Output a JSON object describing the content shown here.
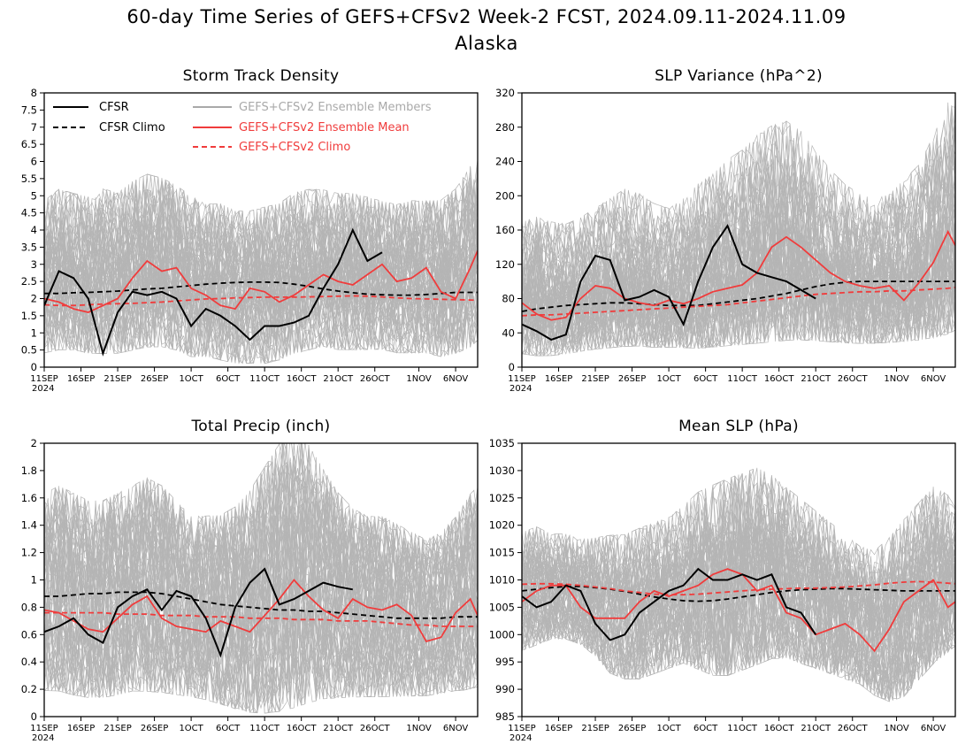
{
  "figure": {
    "title": "60-day Time Series of GEFS+CFSv2 Week-2 FCST, 2024.09.11-2024.11.09",
    "subtitle": "Alaska"
  },
  "colors": {
    "cfsr": "#000000",
    "members": "#a9a9a9",
    "ens_mean": "#f03c3c",
    "gefs_climo": "#f03c3c"
  },
  "legend": {
    "cfsr": "CFSR",
    "cfsr_climo": "CFSR Climo",
    "members": "GEFS+CFSv2 Ensemble Members",
    "ens_mean": "GEFS+CFSv2 Ensemble Mean",
    "gefs_climo": "GEFS+CFSv2 Climo"
  },
  "chart_data": [
    {
      "type": "line",
      "title": "Storm Track Density",
      "x": [
        "09-11",
        "09-13",
        "09-15",
        "09-17",
        "09-19",
        "09-21",
        "09-23",
        "09-25",
        "09-27",
        "09-29",
        "10-01",
        "10-03",
        "10-05",
        "10-07",
        "10-09",
        "10-11",
        "10-13",
        "10-15",
        "10-17",
        "10-19",
        "10-21",
        "10-23",
        "10-25",
        "10-27",
        "10-29",
        "10-31",
        "11-02",
        "11-04",
        "11-06",
        "11-08",
        "11-09"
      ],
      "xticks": [
        "11SEP",
        "16SEP",
        "21SEP",
        "26SEP",
        "1OCT",
        "6OCT",
        "11OCT",
        "16OCT",
        "21OCT",
        "26OCT",
        "1NOV",
        "6NOV"
      ],
      "xyear": "2024",
      "ylim": [
        0,
        8
      ],
      "yticks": [
        "0",
        "0.5",
        "1",
        "1.5",
        "2",
        "2.5",
        "3",
        "3.5",
        "4",
        "4.5",
        "5",
        "5.5",
        "6",
        "6.5",
        "7",
        "7.5",
        "8"
      ],
      "members_band": {
        "upper": [
          4.3,
          4.6,
          4.5,
          4.4,
          4.6,
          4.5,
          4.8,
          5.0,
          4.9,
          4.7,
          4.4,
          4.2,
          4.2,
          4.0,
          4.0,
          4.1,
          4.2,
          4.5,
          4.6,
          4.6,
          4.5,
          4.5,
          4.4,
          4.3,
          4.2,
          4.3,
          4.3,
          4.3,
          4.6,
          5.2,
          5.4
        ],
        "lower": [
          0.6,
          0.7,
          0.7,
          0.6,
          0.6,
          0.6,
          0.7,
          0.8,
          0.8,
          0.7,
          0.5,
          0.5,
          0.4,
          0.3,
          0.3,
          0.3,
          0.4,
          0.6,
          0.7,
          0.8,
          0.7,
          0.7,
          0.7,
          0.7,
          0.6,
          0.6,
          0.6,
          0.5,
          0.6,
          0.8,
          1.0
        ]
      },
      "series": [
        {
          "name": "CFSR",
          "key": "cfsr",
          "values": [
            1.8,
            2.8,
            2.6,
            2.0,
            0.4,
            1.6,
            2.2,
            2.1,
            2.2,
            2.0,
            1.2,
            1.7,
            1.5,
            1.2,
            0.8,
            1.2,
            1.2,
            1.3,
            1.5,
            2.3,
            3.0,
            4.0,
            3.1,
            3.35,
            null,
            null,
            null,
            null,
            null,
            null,
            null
          ]
        },
        {
          "name": "CFSR Climo",
          "key": "cfsr_climo",
          "values": [
            2.15,
            2.15,
            2.17,
            2.18,
            2.2,
            2.22,
            2.25,
            2.28,
            2.3,
            2.34,
            2.38,
            2.42,
            2.45,
            2.47,
            2.48,
            2.48,
            2.47,
            2.42,
            2.36,
            2.28,
            2.22,
            2.17,
            2.13,
            2.11,
            2.1,
            2.1,
            2.12,
            2.15,
            2.18,
            2.18,
            2.18
          ]
        },
        {
          "name": "GEFS+CFSv2 Ensemble Mean",
          "key": "ens_mean",
          "values": [
            2.0,
            1.9,
            1.7,
            1.6,
            1.8,
            2.0,
            2.6,
            3.1,
            2.8,
            2.9,
            2.3,
            2.1,
            1.8,
            1.7,
            2.3,
            2.2,
            1.9,
            2.1,
            2.4,
            2.7,
            2.5,
            2.4,
            2.7,
            3.0,
            2.5,
            2.6,
            2.9,
            2.2,
            2.0,
            2.9,
            3.4
          ]
        },
        {
          "name": "GEFS+CFSv2 Climo",
          "key": "gefs_climo",
          "values": [
            1.82,
            1.8,
            1.8,
            1.82,
            1.84,
            1.85,
            1.86,
            1.88,
            1.9,
            1.93,
            1.96,
            1.99,
            2.0,
            2.02,
            2.03,
            2.04,
            2.04,
            2.04,
            2.05,
            2.06,
            2.07,
            2.08,
            2.07,
            2.05,
            2.02,
            2.0,
            1.99,
            1.98,
            1.97,
            1.96,
            1.95
          ]
        }
      ]
    },
    {
      "type": "line",
      "title": "SLP Variance (hPa^2)",
      "x": [
        "09-11",
        "09-13",
        "09-15",
        "09-17",
        "09-19",
        "09-21",
        "09-23",
        "09-25",
        "09-27",
        "09-29",
        "10-01",
        "10-03",
        "10-05",
        "10-07",
        "10-09",
        "10-11",
        "10-13",
        "10-15",
        "10-17",
        "10-19",
        "10-21",
        "10-23",
        "10-25",
        "10-27",
        "10-29",
        "10-31",
        "11-02",
        "11-04",
        "11-06",
        "11-08",
        "11-09"
      ],
      "xticks": [
        "11SEP",
        "16SEP",
        "21SEP",
        "26SEP",
        "1OCT",
        "6OCT",
        "11OCT",
        "16OCT",
        "21OCT",
        "26OCT",
        "1NOV",
        "6NOV"
      ],
      "xyear": "2024",
      "ylim": [
        0,
        320
      ],
      "yticks": [
        "0",
        "40",
        "80",
        "120",
        "160",
        "200",
        "240",
        "280",
        "320"
      ],
      "members_band": {
        "upper": [
          150,
          155,
          150,
          148,
          155,
          165,
          175,
          185,
          180,
          170,
          165,
          175,
          190,
          200,
          215,
          225,
          240,
          250,
          255,
          245,
          225,
          205,
          190,
          180,
          175,
          180,
          195,
          210,
          240,
          275,
          290
        ],
        "lower": [
          22,
          20,
          20,
          22,
          25,
          28,
          30,
          32,
          32,
          30,
          30,
          30,
          30,
          32,
          34,
          36,
          38,
          40,
          42,
          42,
          40,
          38,
          36,
          35,
          35,
          36,
          38,
          40,
          44,
          50,
          55
        ]
      },
      "series": [
        {
          "name": "CFSR",
          "key": "cfsr",
          "values": [
            50,
            42,
            32,
            38,
            100,
            130,
            125,
            78,
            82,
            90,
            82,
            50,
            100,
            140,
            165,
            120,
            110,
            105,
            100,
            90,
            80,
            null,
            null,
            null,
            null,
            null,
            null,
            null,
            null,
            null,
            null
          ]
        },
        {
          "name": "CFSR Climo",
          "key": "cfsr_climo",
          "values": [
            65,
            68,
            70,
            72,
            73,
            74,
            75,
            75,
            74,
            73,
            72,
            72,
            72,
            74,
            76,
            78,
            80,
            83,
            86,
            90,
            94,
            97,
            99,
            100,
            100,
            100,
            100,
            100,
            100,
            100,
            100
          ]
        },
        {
          "name": "GEFS+CFSv2 Ensemble Mean",
          "key": "ens_mean",
          "values": [
            75,
            62,
            55,
            58,
            80,
            95,
            92,
            80,
            75,
            72,
            78,
            74,
            80,
            88,
            92,
            96,
            110,
            140,
            152,
            140,
            125,
            110,
            100,
            95,
            92,
            95,
            78,
            98,
            122,
            158,
            142
          ]
        },
        {
          "name": "GEFS+CFSv2 Climo",
          "key": "gefs_climo",
          "values": [
            60,
            61,
            61,
            62,
            63,
            64,
            65,
            66,
            67,
            68,
            69,
            70,
            71,
            72,
            73,
            75,
            77,
            79,
            81,
            83,
            85,
            86,
            87,
            88,
            88,
            89,
            89,
            90,
            91,
            92,
            93
          ]
        }
      ]
    },
    {
      "type": "line",
      "title": "Total Precip (inch)",
      "x": [
        "09-11",
        "09-13",
        "09-15",
        "09-17",
        "09-19",
        "09-21",
        "09-23",
        "09-25",
        "09-27",
        "09-29",
        "10-01",
        "10-03",
        "10-05",
        "10-07",
        "10-09",
        "10-11",
        "10-13",
        "10-15",
        "10-17",
        "10-19",
        "10-21",
        "10-23",
        "10-25",
        "10-27",
        "10-29",
        "10-31",
        "11-02",
        "11-04",
        "11-06",
        "11-08",
        "11-09"
      ],
      "xticks": [
        "11SEP",
        "16SEP",
        "21SEP",
        "26SEP",
        "1OCT",
        "6OCT",
        "11OCT",
        "16OCT",
        "21OCT",
        "26OCT",
        "1NOV",
        "6NOV"
      ],
      "xyear": "2024",
      "ylim": [
        0,
        2
      ],
      "yticks": [
        "0",
        "0.2",
        "0.4",
        "0.6",
        "0.8",
        "1",
        "1.2",
        "1.4",
        "1.6",
        "1.8",
        "2"
      ],
      "members_band": {
        "upper": [
          1.45,
          1.5,
          1.45,
          1.4,
          1.4,
          1.45,
          1.5,
          1.55,
          1.5,
          1.4,
          1.3,
          1.3,
          1.3,
          1.35,
          1.45,
          1.6,
          1.75,
          1.85,
          1.75,
          1.6,
          1.45,
          1.35,
          1.3,
          1.3,
          1.25,
          1.2,
          1.15,
          1.2,
          1.3,
          1.45,
          1.5
        ],
        "lower": [
          0.25,
          0.25,
          0.22,
          0.2,
          0.2,
          0.22,
          0.25,
          0.25,
          0.24,
          0.22,
          0.2,
          0.18,
          0.15,
          0.12,
          0.1,
          0.1,
          0.12,
          0.15,
          0.18,
          0.2,
          0.2,
          0.2,
          0.2,
          0.2,
          0.2,
          0.2,
          0.2,
          0.22,
          0.24,
          0.26,
          0.28
        ]
      },
      "series": [
        {
          "name": "CFSR",
          "key": "cfsr",
          "values": [
            0.62,
            0.66,
            0.72,
            0.6,
            0.54,
            0.8,
            0.88,
            0.93,
            0.78,
            0.92,
            0.88,
            0.72,
            0.45,
            0.8,
            0.98,
            1.08,
            0.82,
            0.86,
            0.92,
            0.98,
            0.95,
            0.93,
            null,
            null,
            null,
            null,
            null,
            null,
            null,
            null,
            null
          ]
        },
        {
          "name": "CFSR Climo",
          "key": "cfsr_climo",
          "values": [
            0.88,
            0.88,
            0.89,
            0.9,
            0.9,
            0.91,
            0.91,
            0.91,
            0.9,
            0.88,
            0.86,
            0.84,
            0.82,
            0.81,
            0.8,
            0.79,
            0.78,
            0.78,
            0.77,
            0.77,
            0.76,
            0.75,
            0.74,
            0.73,
            0.72,
            0.72,
            0.72,
            0.72,
            0.73,
            0.73,
            0.73
          ]
        },
        {
          "name": "GEFS+CFSv2 Ensemble Mean",
          "key": "ens_mean",
          "values": [
            0.78,
            0.76,
            0.7,
            0.64,
            0.62,
            0.72,
            0.82,
            0.88,
            0.72,
            0.66,
            0.64,
            0.62,
            0.7,
            0.66,
            0.62,
            0.74,
            0.86,
            1.0,
            0.88,
            0.78,
            0.72,
            0.86,
            0.8,
            0.78,
            0.82,
            0.74,
            0.55,
            0.58,
            0.76,
            0.86,
            0.74
          ]
        },
        {
          "name": "GEFS+CFSv2 Climo",
          "key": "gefs_climo",
          "values": [
            0.76,
            0.76,
            0.76,
            0.76,
            0.76,
            0.75,
            0.75,
            0.75,
            0.74,
            0.74,
            0.74,
            0.73,
            0.73,
            0.73,
            0.72,
            0.72,
            0.72,
            0.71,
            0.71,
            0.71,
            0.7,
            0.7,
            0.7,
            0.69,
            0.68,
            0.67,
            0.67,
            0.66,
            0.66,
            0.66,
            0.66
          ]
        }
      ]
    },
    {
      "type": "line",
      "title": "Mean SLP (hPa)",
      "x": [
        "09-11",
        "09-13",
        "09-15",
        "09-17",
        "09-19",
        "09-21",
        "09-23",
        "09-25",
        "09-27",
        "09-29",
        "10-01",
        "10-03",
        "10-05",
        "10-07",
        "10-09",
        "10-11",
        "10-13",
        "10-15",
        "10-17",
        "10-19",
        "10-21",
        "10-23",
        "10-25",
        "10-27",
        "10-29",
        "10-31",
        "11-02",
        "11-04",
        "11-06",
        "11-08",
        "11-09"
      ],
      "xticks": [
        "11SEP",
        "16SEP",
        "21SEP",
        "26SEP",
        "1OCT",
        "6OCT",
        "11OCT",
        "16OCT",
        "21OCT",
        "26OCT",
        "1NOV",
        "6NOV"
      ],
      "xyear": "2024",
      "ylim": [
        985,
        1035
      ],
      "yticks": [
        "985",
        "990",
        "995",
        "1000",
        "1005",
        "1010",
        "1015",
        "1020",
        "1025",
        "1030",
        "1035"
      ],
      "members_band": {
        "upper": [
          1016,
          1017,
          1016,
          1016,
          1015,
          1015,
          1015,
          1015,
          1016,
          1017,
          1018,
          1020,
          1022,
          1023,
          1024,
          1025,
          1026,
          1025,
          1023,
          1021,
          1019,
          1017,
          1015,
          1013,
          1012,
          1014,
          1017,
          1020,
          1023,
          1022,
          1020
        ],
        "lower": [
          998,
          999,
          1000,
          1000,
          999,
          997,
          994,
          993,
          993,
          994,
          995,
          996,
          995,
          994,
          994,
          995,
          996,
          997,
          997,
          996,
          995,
          994,
          993,
          992,
          990,
          989,
          990,
          993,
          996,
          998,
          999
        ]
      },
      "series": [
        {
          "name": "CFSR",
          "key": "cfsr",
          "values": [
            1007,
            1005,
            1006,
            1009,
            1008,
            1002,
            999,
            1000,
            1004,
            1006,
            1008,
            1009,
            1012,
            1010,
            1010,
            1011,
            1010,
            1011,
            1005,
            1004,
            1000,
            null,
            null,
            null,
            null,
            null,
            null,
            null,
            null,
            null,
            null
          ]
        },
        {
          "name": "CFSR Climo",
          "key": "cfsr_climo",
          "values": [
            1008,
            1008.3,
            1008.6,
            1008.8,
            1008.8,
            1008.6,
            1008.3,
            1007.9,
            1007.4,
            1006.9,
            1006.5,
            1006.2,
            1006.1,
            1006.2,
            1006.5,
            1006.9,
            1007.3,
            1007.7,
            1008,
            1008.2,
            1008.3,
            1008.4,
            1008.4,
            1008.3,
            1008.2,
            1008.1,
            1008,
            1008,
            1008,
            1008,
            1008
          ]
        },
        {
          "name": "GEFS+CFSv2 Ensemble Mean",
          "key": "ens_mean",
          "values": [
            1006,
            1008,
            1009,
            1009,
            1005,
            1003,
            1003,
            1003,
            1006,
            1008,
            1007,
            1008,
            1009,
            1011,
            1012,
            1011,
            1008,
            1009,
            1004,
            1003,
            1000,
            1001,
            1002,
            1000,
            997,
            1001,
            1006,
            1008,
            1010,
            1005,
            1006
          ]
        },
        {
          "name": "GEFS+CFSv2 Climo",
          "key": "gefs_climo",
          "values": [
            1009.2,
            1009.3,
            1009.3,
            1009.2,
            1009,
            1008.7,
            1008.4,
            1008,
            1007.7,
            1007.4,
            1007.3,
            1007.3,
            1007.4,
            1007.6,
            1007.8,
            1008,
            1008.2,
            1008.3,
            1008.4,
            1008.5,
            1008.5,
            1008.6,
            1008.7,
            1008.9,
            1009.1,
            1009.4,
            1009.6,
            1009.7,
            1009.6,
            1009.4,
            1009.3
          ]
        }
      ]
    }
  ]
}
